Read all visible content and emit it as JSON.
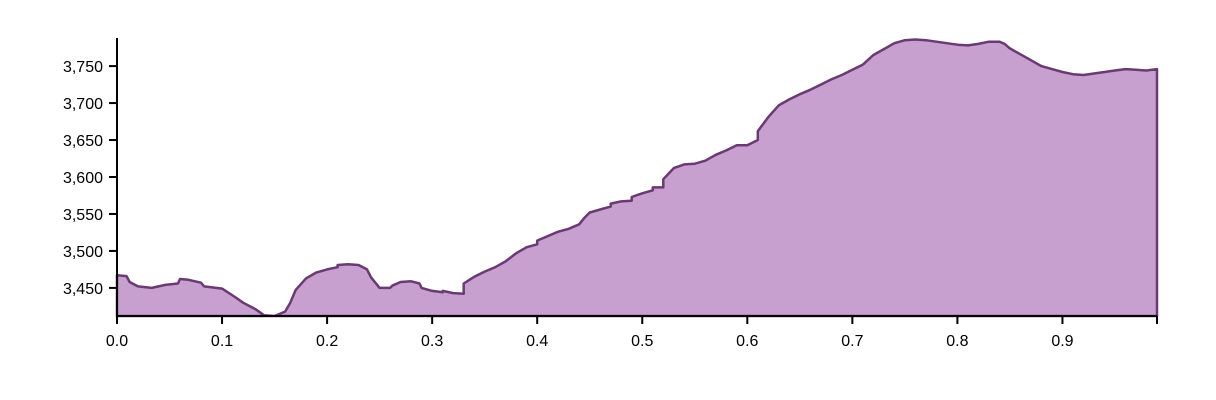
{
  "chart_data": {
    "type": "area",
    "title": "",
    "xlabel": "",
    "ylabel": "",
    "xlim": [
      0,
      0.99
    ],
    "ylim": [
      3412,
      3788
    ],
    "grid": false,
    "legend": "none",
    "x_ticks": [
      "0.0",
      "0.1",
      "0.2",
      "0.3",
      "0.4",
      "0.5",
      "0.6",
      "0.7",
      "0.8",
      "0.9"
    ],
    "y_ticks": [
      "3,450",
      "3,500",
      "3,550",
      "3,600",
      "3,650",
      "3,700",
      "3,750"
    ],
    "colors": {
      "fill": "#c8a0d0",
      "stroke": "#6a3a72"
    },
    "series": [
      {
        "x": [
          0,
          0.009,
          0.012,
          0.02,
          0.033,
          0.046,
          0.058,
          0.06,
          0.068,
          0.08,
          0.083,
          0.1,
          0.113,
          0.12,
          0.128,
          0.132,
          0.14,
          0.15,
          0.16,
          0.165,
          0.17,
          0.18,
          0.19,
          0.2,
          0.21,
          0.21,
          0.22,
          0.23,
          0.238,
          0.242,
          0.25,
          0.26,
          0.262,
          0.27,
          0.28,
          0.288,
          0.29,
          0.3,
          0.31,
          0.31,
          0.32,
          0.33,
          0.33,
          0.34,
          0.35,
          0.36,
          0.37,
          0.38,
          0.39,
          0.4,
          0.4,
          0.41,
          0.42,
          0.43,
          0.44,
          0.445,
          0.45,
          0.46,
          0.47,
          0.47,
          0.48,
          0.49,
          0.49,
          0.5,
          0.51,
          0.51,
          0.52,
          0.52,
          0.53,
          0.54,
          0.55,
          0.56,
          0.57,
          0.58,
          0.59,
          0.6,
          0.61,
          0.61,
          0.62,
          0.63,
          0.64,
          0.65,
          0.66,
          0.67,
          0.68,
          0.69,
          0.7,
          0.71,
          0.72,
          0.73,
          0.74,
          0.75,
          0.76,
          0.77,
          0.78,
          0.79,
          0.8,
          0.81,
          0.82,
          0.83,
          0.84,
          0.845,
          0.85,
          0.86,
          0.87,
          0.88,
          0.89,
          0.9,
          0.91,
          0.92,
          0.93,
          0.94,
          0.95,
          0.96,
          0.97,
          0.98,
          0.99
        ],
        "values": [
          3467,
          3466,
          3458,
          3452,
          3450,
          3454,
          3456,
          3462,
          3461,
          3457,
          3452,
          3449,
          3437,
          3430,
          3424,
          3421,
          3413,
          3412,
          3418,
          3430,
          3447,
          3463,
          3471,
          3475,
          3478,
          3481,
          3482,
          3481,
          3475,
          3464,
          3450,
          3450,
          3453,
          3458,
          3459,
          3456,
          3450,
          3446,
          3444,
          3446,
          3443,
          3442,
          3456,
          3465,
          3472,
          3478,
          3486,
          3497,
          3505,
          3509,
          3514,
          3520,
          3526,
          3530,
          3536,
          3545,
          3552,
          3556,
          3560,
          3564,
          3567,
          3568,
          3573,
          3578,
          3582,
          3586,
          3586,
          3597,
          3612,
          3617,
          3618,
          3622,
          3630,
          3636,
          3643,
          3643,
          3650,
          3662,
          3681,
          3697,
          3705,
          3712,
          3718,
          3725,
          3732,
          3738,
          3745,
          3752,
          3765,
          3773,
          3781,
          3785,
          3786,
          3785,
          3783,
          3781,
          3779,
          3778,
          3780,
          3783,
          3783,
          3780,
          3774,
          3766,
          3758,
          3750,
          3746,
          3742,
          3739,
          3738,
          3740,
          3742,
          3744,
          3746,
          3745,
          3744,
          3746
        ]
      }
    ]
  }
}
